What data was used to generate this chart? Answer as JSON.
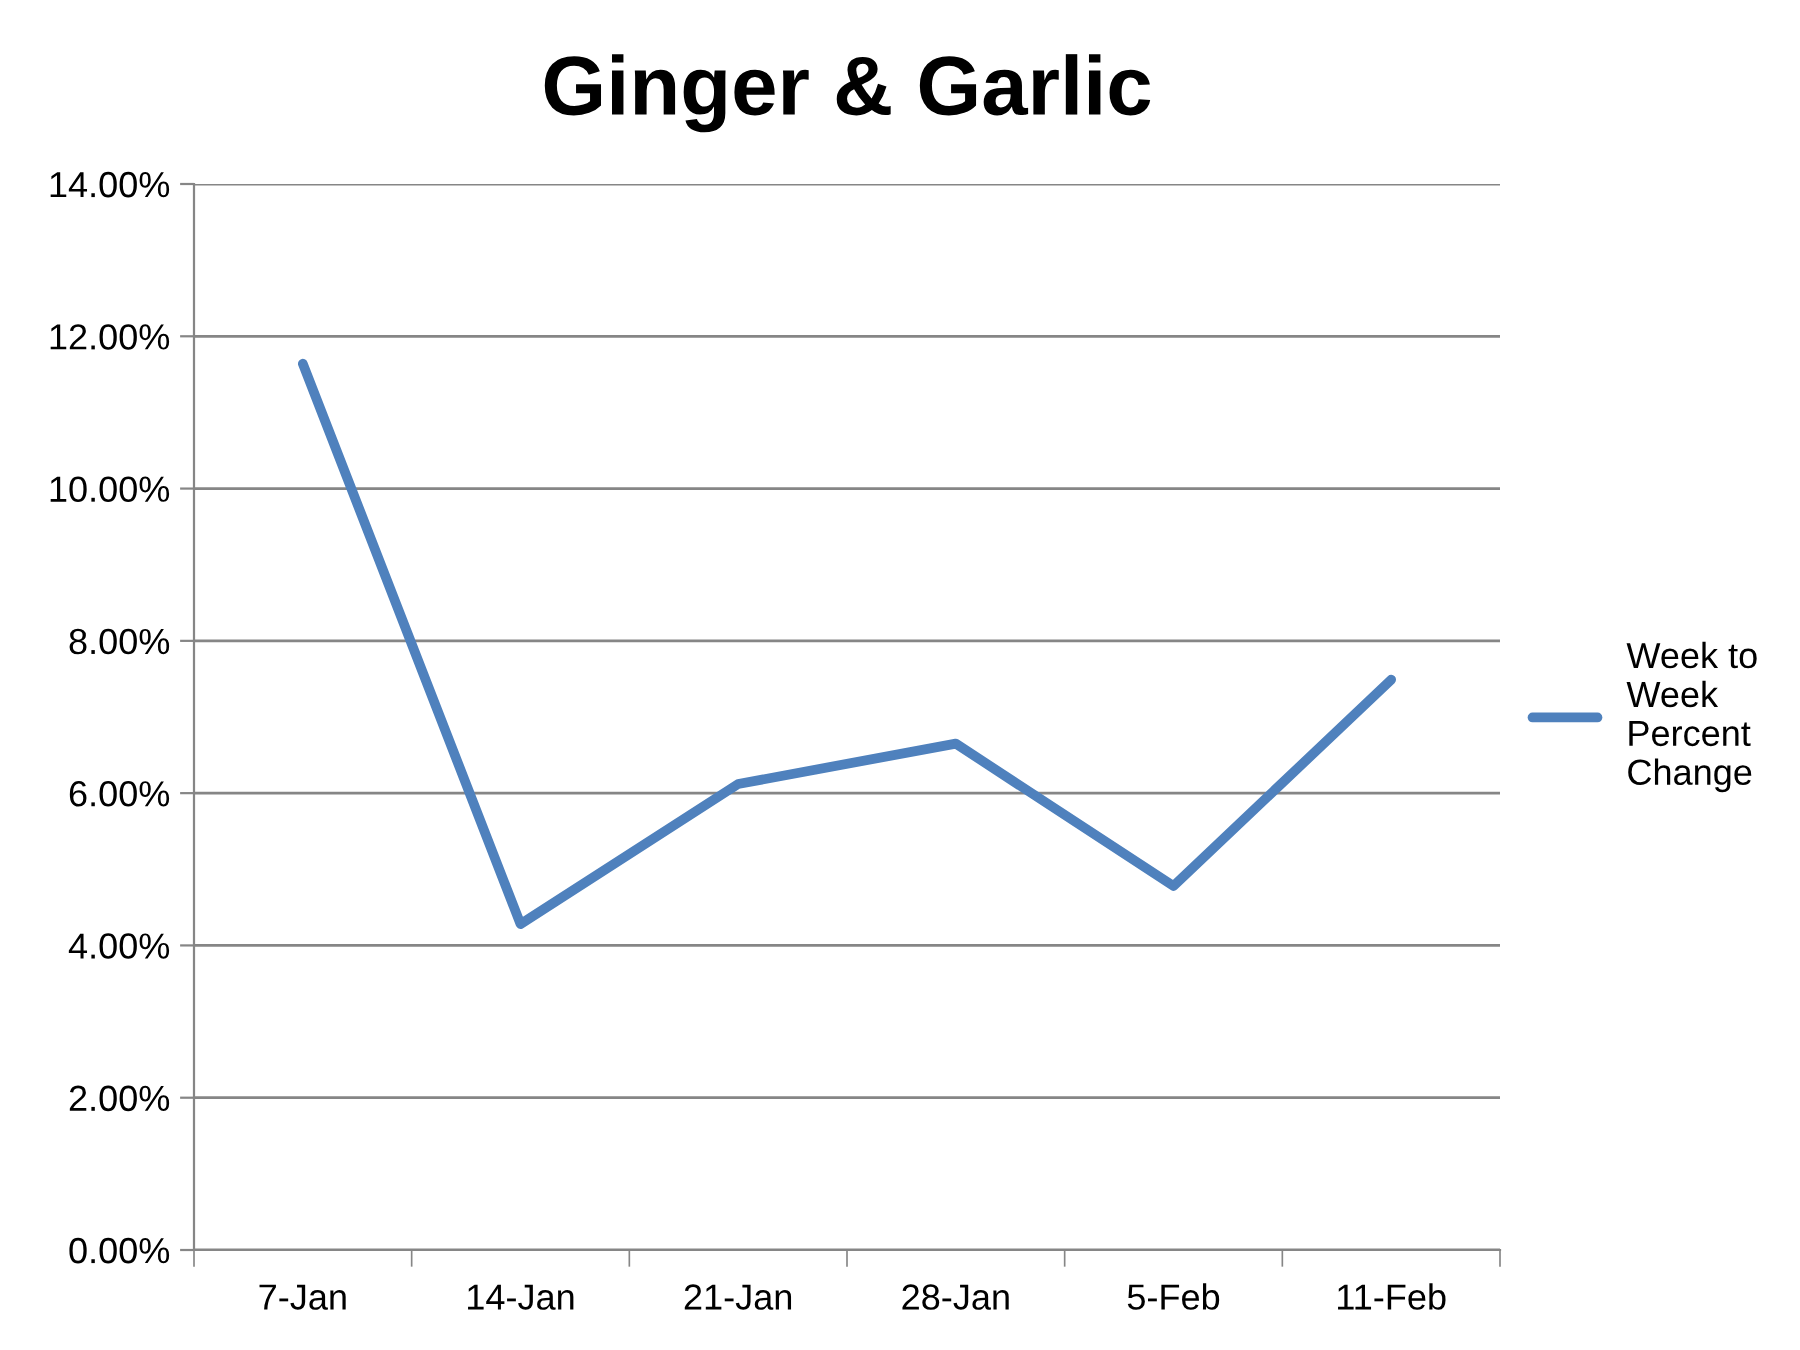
{
  "chart_data": {
    "type": "line",
    "title": "Ginger & Garlic",
    "categories": [
      "7-Jan",
      "14-Jan",
      "21-Jan",
      "28-Jan",
      "5-Feb",
      "11-Feb"
    ],
    "series": [
      {
        "name": "Week to\nWeek\nPercent\nChange",
        "color": "#4f81bd",
        "values": [
          11.64,
          4.28,
          6.12,
          6.65,
          4.78,
          7.49
        ]
      }
    ],
    "ylim": [
      0,
      14
    ],
    "yticks": [
      {
        "value": 0,
        "label": "0.00%"
      },
      {
        "value": 2,
        "label": "2.00%"
      },
      {
        "value": 4,
        "label": "4.00%"
      },
      {
        "value": 6,
        "label": "6.00%"
      },
      {
        "value": 8,
        "label": "8.00%"
      },
      {
        "value": 10,
        "label": "10.00%"
      },
      {
        "value": 12,
        "label": "12.00%"
      },
      {
        "value": 14,
        "label": "14.00%"
      }
    ],
    "grid": "y",
    "legend": "right",
    "marker": "none",
    "line_style": "solid"
  }
}
